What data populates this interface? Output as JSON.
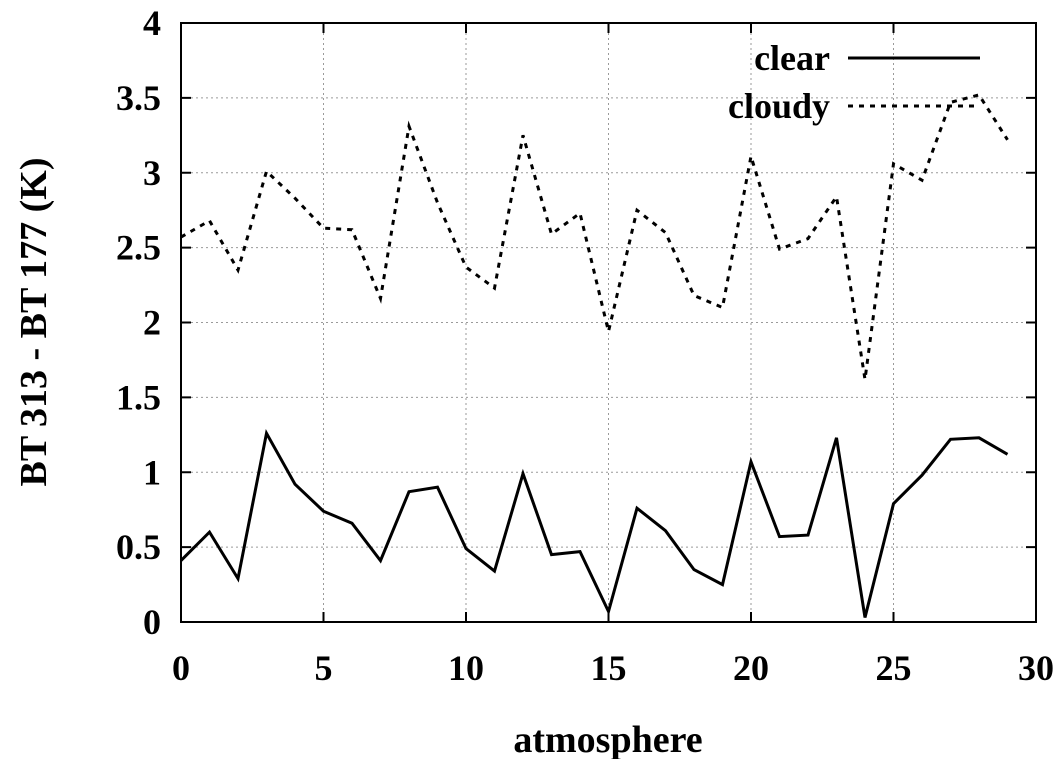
{
  "chart_data": {
    "type": "line",
    "xlabel": "atmosphere",
    "ylabel": "BT 313 - BT 177 (K)",
    "xlim": [
      0,
      30
    ],
    "ylim": [
      0,
      4
    ],
    "x_ticks": [
      "0",
      "5",
      "10",
      "15",
      "20",
      "25",
      "30"
    ],
    "y_ticks": [
      "0",
      "0.5",
      "1",
      "1.5",
      "2",
      "2.5",
      "3",
      "3.5",
      "4"
    ],
    "grid": true,
    "legend_position": "top-right",
    "x": [
      0,
      1,
      2,
      3,
      4,
      5,
      6,
      7,
      8,
      9,
      10,
      11,
      12,
      13,
      14,
      15,
      16,
      17,
      18,
      19,
      20,
      21,
      22,
      23,
      24,
      25,
      26,
      27,
      28,
      29
    ],
    "series": [
      {
        "name": "clear",
        "style": "solid",
        "color": "#000000",
        "values": [
          0.41,
          0.6,
          0.29,
          1.26,
          0.92,
          0.74,
          0.66,
          0.41,
          0.87,
          0.9,
          0.49,
          0.34,
          0.99,
          0.45,
          0.47,
          0.07,
          0.76,
          0.61,
          0.35,
          0.25,
          1.07,
          0.57,
          0.58,
          1.23,
          0.03,
          0.79,
          0.98,
          1.22,
          1.23,
          1.12
        ]
      },
      {
        "name": "cloudy",
        "style": "dotted",
        "color": "#000000",
        "values": [
          2.57,
          2.68,
          2.35,
          3.01,
          2.83,
          2.63,
          2.62,
          2.16,
          3.31,
          2.8,
          2.37,
          2.23,
          3.25,
          2.59,
          2.73,
          1.94,
          2.75,
          2.6,
          2.18,
          2.1,
          3.11,
          2.49,
          2.56,
          2.84,
          1.62,
          3.06,
          2.95,
          3.47,
          3.52,
          3.22
        ]
      }
    ]
  }
}
